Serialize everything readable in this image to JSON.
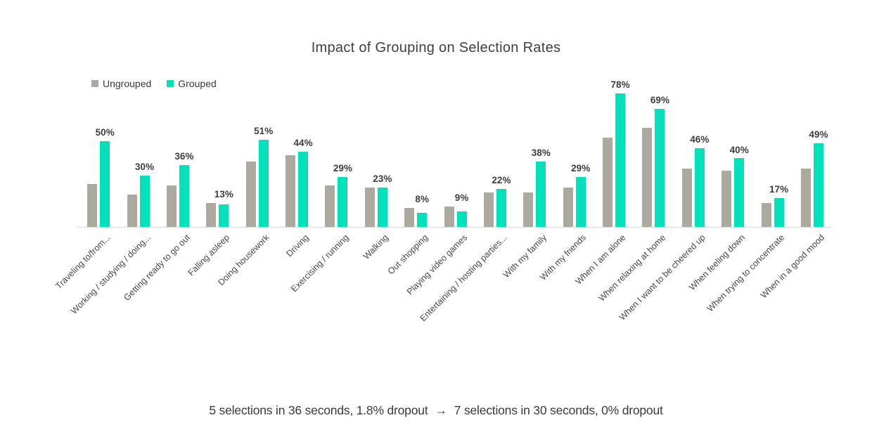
{
  "title": "Impact of Grouping on Selection Rates",
  "legend": {
    "items": [
      {
        "label": "Ungrouped",
        "color": "#ACA99E"
      },
      {
        "label": "Grouped",
        "color": "#00E1BC"
      }
    ]
  },
  "footer": {
    "before": "5 selections in 36 seconds, 1.8% dropout",
    "arrow": "→",
    "after": "7 selections in 30 seconds, 0% dropout"
  },
  "colors": {
    "ungrouped": "#ACA99E",
    "grouped": "#00E1BC",
    "axis_line": "#D9D9D9",
    "label_text": "#3D3D3D"
  },
  "chart_data": {
    "type": "bar",
    "title": "Impact of Grouping on Selection Rates",
    "categories": [
      "Traveling to/from...",
      "Working / studying / doing...",
      "Getting ready to go out",
      "Falling asleep",
      "Doing housework",
      "Driving",
      "Exercising / running",
      "Walking",
      "Out shopping",
      "Playing video games",
      "Entertaining / hosting parties...",
      "With my family",
      "With my friends",
      "When I am alone",
      "When relaxing at home",
      "When I want to be cheered up",
      "When feeling down",
      "When trying to concentrate",
      "When in a good mood"
    ],
    "series": [
      {
        "name": "Ungrouped",
        "color": "#ACA99E",
        "values": [
          25,
          19,
          24,
          14,
          38,
          42,
          24,
          23,
          11,
          12,
          20,
          20,
          23,
          52,
          58,
          34,
          33,
          14,
          34
        ]
      },
      {
        "name": "Grouped",
        "color": "#00E1BC",
        "values": [
          50,
          30,
          36,
          13,
          51,
          44,
          29,
          23,
          8,
          9,
          22,
          38,
          29,
          78,
          69,
          46,
          40,
          17,
          49
        ],
        "data_labels": [
          "50%",
          "30%",
          "36%",
          "13%",
          "51%",
          "44%",
          "29%",
          "23%",
          "8%",
          "9%",
          "22%",
          "38%",
          "29%",
          "78%",
          "69%",
          "46%",
          "40%",
          "17%",
          "49%"
        ]
      }
    ],
    "ylim": [
      0,
      80
    ],
    "grid": false,
    "legend_position": "top-left",
    "value_labels_shown_for": "Grouped",
    "xlabel_rotation_deg": 45,
    "xlabel": "",
    "ylabel": ""
  }
}
